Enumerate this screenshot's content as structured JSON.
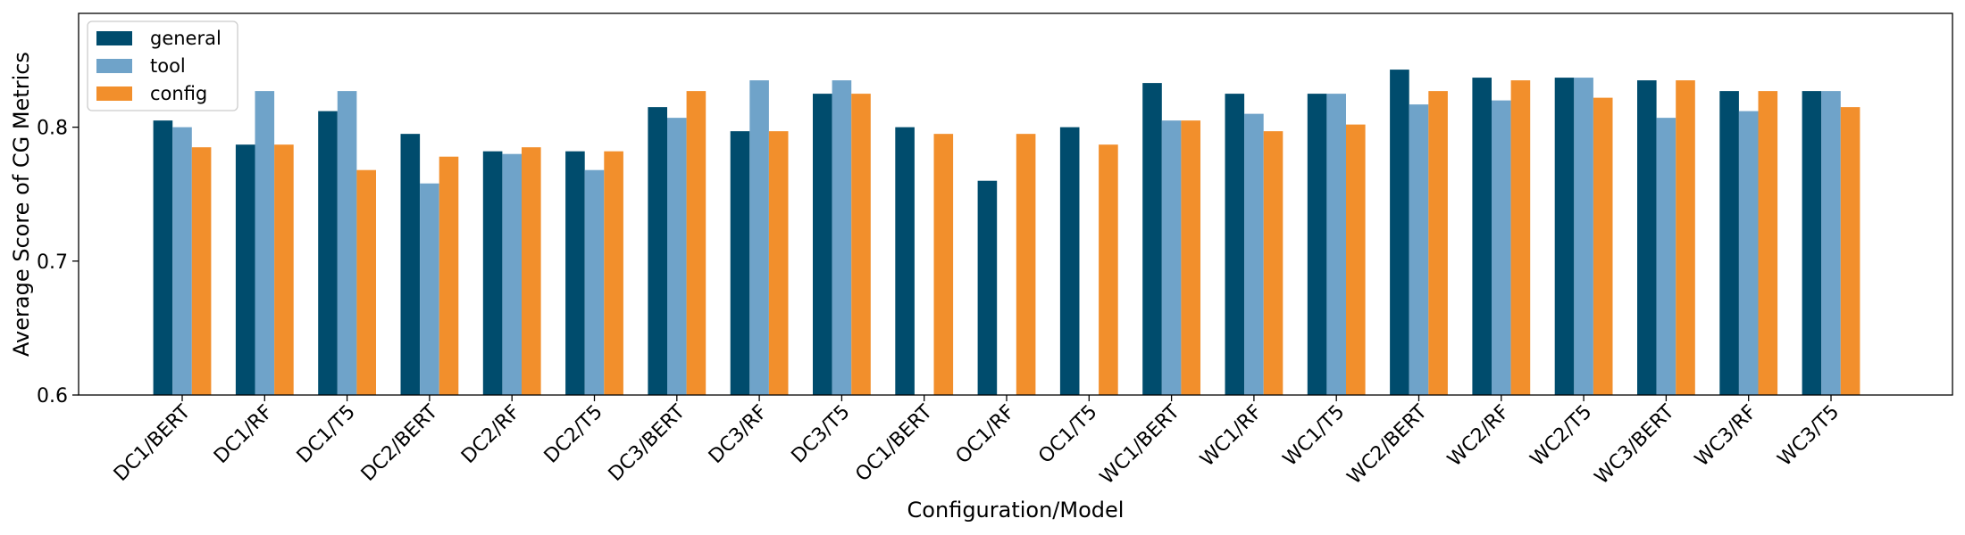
{
  "chart_data": {
    "type": "bar",
    "title": "",
    "xlabel": "Configuration/Model",
    "ylabel": "Average Score of CG Metrics",
    "ylim": [
      0.6,
      0.885
    ],
    "yticks": [
      "0.6",
      "0.7",
      "0.8"
    ],
    "grid": false,
    "legend_position": "top-left",
    "categories": [
      "DC1/BERT",
      "DC1/RF",
      "DC1/T5",
      "DC2/BERT",
      "DC2/RF",
      "DC2/T5",
      "DC3/BERT",
      "DC3/RF",
      "DC3/T5",
      "OC1/BERT",
      "OC1/RF",
      "OC1/T5",
      "WC1/BERT",
      "WC1/RF",
      "WC1/T5",
      "WC2/BERT",
      "WC2/RF",
      "WC2/T5",
      "WC3/BERT",
      "WC3/RF",
      "WC3/T5"
    ],
    "series": [
      {
        "name": "general",
        "color": "#004c6d",
        "values": [
          0.805,
          0.787,
          0.812,
          0.795,
          0.782,
          0.782,
          0.815,
          0.797,
          0.825,
          0.8,
          0.76,
          0.8,
          0.833,
          0.825,
          0.825,
          0.843,
          0.837,
          0.837,
          0.835,
          0.827,
          0.827
        ]
      },
      {
        "name": "tool",
        "color": "#6fa3c9",
        "values": [
          0.8,
          0.827,
          0.827,
          0.758,
          0.78,
          0.768,
          0.807,
          0.835,
          0.835,
          null,
          null,
          null,
          0.805,
          0.81,
          0.825,
          0.817,
          0.82,
          0.837,
          0.807,
          0.812,
          0.827
        ]
      },
      {
        "name": "config",
        "color": "#f28f2c",
        "values": [
          0.785,
          0.787,
          0.768,
          0.778,
          0.785,
          0.782,
          0.827,
          0.797,
          0.825,
          0.795,
          0.795,
          0.787,
          0.805,
          0.797,
          0.802,
          0.827,
          0.835,
          0.822,
          0.835,
          0.827,
          0.815
        ]
      }
    ]
  }
}
